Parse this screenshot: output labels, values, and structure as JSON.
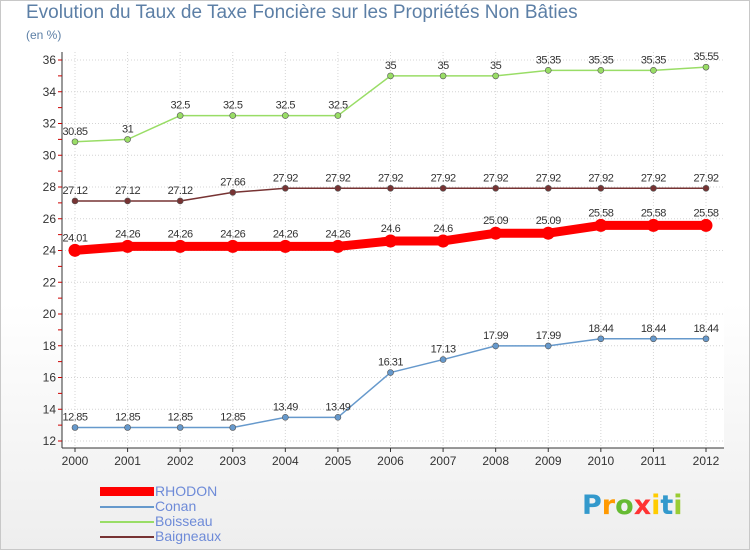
{
  "chart_data": {
    "type": "line",
    "title": "Evolution du Taux de Taxe Foncière sur les Propriétés Non Bâties",
    "ylabel": "(en %)",
    "xlabel": "",
    "x": [
      "2000",
      "2001",
      "2002",
      "2003",
      "2004",
      "2005",
      "2006",
      "2007",
      "2008",
      "2009",
      "2010",
      "2011",
      "2012"
    ],
    "ylim": [
      12,
      36
    ],
    "yticks": [
      12,
      14,
      16,
      18,
      20,
      22,
      24,
      26,
      28,
      30,
      32,
      34,
      36
    ],
    "grid": true,
    "legend_position": "bottom-left",
    "series": [
      {
        "name": "RHODON",
        "color": "#ff0000",
        "width": 9,
        "values": [
          24.01,
          24.26,
          24.26,
          24.26,
          24.26,
          24.26,
          24.6,
          24.6,
          25.09,
          25.09,
          25.58,
          25.58,
          25.58
        ],
        "labels": [
          "24.01",
          "24.26",
          "24.26",
          "24.26",
          "24.26",
          "24.26",
          "24.6",
          "24.6",
          "25.09",
          "25.09",
          "25.58",
          "25.58",
          "25.58"
        ]
      },
      {
        "name": "Conan",
        "color": "#6699cc",
        "width": 1.5,
        "values": [
          12.85,
          12.85,
          12.85,
          12.85,
          13.49,
          13.49,
          16.31,
          17.13,
          17.99,
          17.99,
          18.44,
          18.44,
          18.44
        ],
        "labels": [
          "12.85",
          "12.85",
          "12.85",
          "12.85",
          "13.49",
          "13.49",
          "16.31",
          "17.13",
          "17.99",
          "17.99",
          "18.44",
          "18.44",
          "18.44"
        ]
      },
      {
        "name": "Boisseau",
        "color": "#99dd66",
        "width": 1.5,
        "values": [
          30.85,
          31,
          32.5,
          32.5,
          32.5,
          32.5,
          35,
          35,
          35,
          35.35,
          35.35,
          35.35,
          35.55
        ],
        "labels": [
          "30.85",
          "31",
          "32.5",
          "32.5",
          "32.5",
          "32.5",
          "35",
          "35",
          "35",
          "35.35",
          "35.35",
          "35.35",
          "35.55"
        ]
      },
      {
        "name": "Baigneaux",
        "color": "#773333",
        "width": 1.5,
        "values": [
          27.12,
          27.12,
          27.12,
          27.66,
          27.92,
          27.92,
          27.92,
          27.92,
          27.92,
          27.92,
          27.92,
          27.92,
          27.92
        ],
        "labels": [
          "27.12",
          "27.12",
          "27.12",
          "27.66",
          "27.92",
          "27.92",
          "27.92",
          "27.92",
          "27.92",
          "27.92",
          "27.92",
          "27.92",
          "27.92"
        ]
      }
    ]
  },
  "logo": {
    "letters": [
      "P",
      "r",
      "o",
      "x",
      "i",
      "t",
      "i"
    ],
    "colors": [
      "#3399cc",
      "#ff9900",
      "#66bb33",
      "#ff3333",
      "#ffcc00",
      "#3399cc",
      "#99cc33"
    ]
  }
}
